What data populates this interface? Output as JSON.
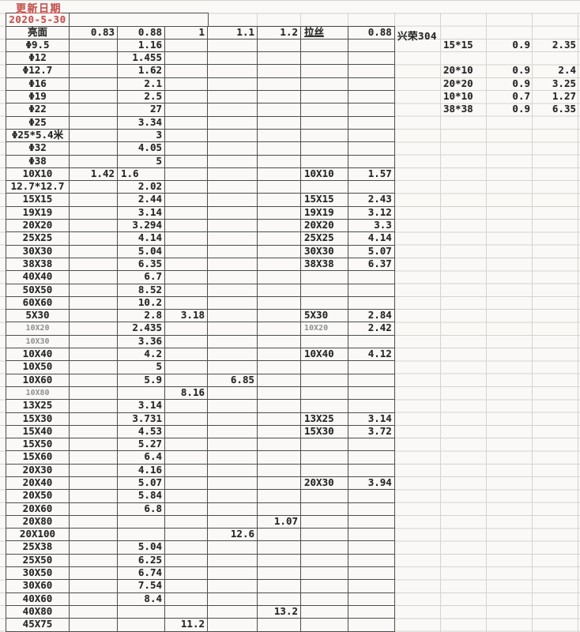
{
  "sheet": {
    "update_label": "更新日期",
    "update_date": "2020-5-30",
    "colors": {
      "accent_red": "#c4524e",
      "table_border": "#4d4d4d",
      "gridline": "#d6d3ce",
      "text": "#262626",
      "muted_label": "#8f8f8f",
      "background": "#faf9f7"
    }
  },
  "main_table": {
    "header": [
      "亮面",
      "0.83",
      "0.88",
      "1",
      "1.1",
      "1.2",
      "拉丝",
      "0.88"
    ],
    "rows": [
      {
        "c": [
          "Φ9.5",
          "",
          "1.16",
          "",
          "",
          "",
          "",
          ""
        ]
      },
      {
        "c": [
          "Φ12",
          "",
          "1.455",
          "",
          "",
          "",
          "",
          ""
        ]
      },
      {
        "c": [
          "Φ12.7",
          "",
          "1.62",
          "",
          "",
          "",
          "",
          ""
        ]
      },
      {
        "c": [
          "Φ16",
          "",
          "2.1",
          "",
          "",
          "",
          "",
          ""
        ]
      },
      {
        "c": [
          "Φ19",
          "",
          "2.5",
          "",
          "",
          "",
          "",
          ""
        ]
      },
      {
        "c": [
          "Φ22",
          "",
          "27",
          "",
          "",
          "",
          "",
          ""
        ]
      },
      {
        "c": [
          "Φ25",
          "",
          "3.34",
          "",
          "",
          "",
          "",
          ""
        ]
      },
      {
        "c": [
          "Φ25*5.4米",
          "",
          "3",
          "",
          "",
          "",
          "",
          ""
        ]
      },
      {
        "c": [
          "Φ32",
          "",
          "4.05",
          "",
          "",
          "",
          "",
          ""
        ]
      },
      {
        "c": [
          "Φ38",
          "",
          "5",
          "",
          "",
          "",
          "",
          ""
        ]
      },
      {
        "c": [
          "10X10",
          "1.42",
          "1.6",
          "",
          "",
          "",
          "10X10",
          "1.57"
        ],
        "cl": true
      },
      {
        "c": [
          "12.7*12.7",
          "",
          "2.02",
          "",
          "",
          "",
          "",
          ""
        ]
      },
      {
        "c": [
          "15X15",
          "",
          "2.44",
          "",
          "",
          "",
          "15X15",
          "2.43"
        ]
      },
      {
        "c": [
          "19X19",
          "",
          "3.14",
          "",
          "",
          "",
          "19X19",
          "3.12"
        ]
      },
      {
        "c": [
          "20X20",
          "",
          "3.294",
          "",
          "",
          "",
          "20X20",
          "3.3"
        ]
      },
      {
        "c": [
          "25X25",
          "",
          "4.14",
          "",
          "",
          "",
          "25X25",
          "4.14"
        ]
      },
      {
        "c": [
          "30X30",
          "",
          "5.04",
          "",
          "",
          "",
          "30X30",
          "5.07"
        ]
      },
      {
        "c": [
          "38X38",
          "",
          "6.35",
          "",
          "",
          "",
          "38X38",
          "6.37"
        ]
      },
      {
        "c": [
          "40X40",
          "",
          "6.7",
          "",
          "",
          "",
          "",
          ""
        ]
      },
      {
        "c": [
          "50X50",
          "",
          "8.52",
          "",
          "",
          "",
          "",
          ""
        ]
      },
      {
        "c": [
          "60X60",
          "",
          "10.2",
          "",
          "",
          "",
          "",
          ""
        ]
      },
      {
        "c": [
          "5X30",
          "",
          "2.8",
          "3.18",
          "",
          "",
          "5X30",
          "2.84"
        ]
      },
      {
        "c": [
          "10X20",
          "",
          "2.435",
          "",
          "",
          "",
          "10X20",
          "2.42"
        ],
        "sa": true,
        "sg": true
      },
      {
        "c": [
          "10X30",
          "",
          "3.36",
          "",
          "",
          "",
          "",
          ""
        ],
        "sa": true
      },
      {
        "c": [
          "10X40",
          "",
          "4.2",
          "",
          "",
          "",
          "10X40",
          "4.12"
        ]
      },
      {
        "c": [
          "10X50",
          "",
          "5",
          "",
          "",
          "",
          "",
          ""
        ]
      },
      {
        "c": [
          "10X60",
          "",
          "5.9",
          "",
          "6.85",
          "",
          "",
          ""
        ]
      },
      {
        "c": [
          "10X80",
          "",
          "",
          "8.16",
          "",
          "",
          "",
          ""
        ],
        "sa": true
      },
      {
        "c": [
          "13X25",
          "",
          "3.14",
          "",
          "",
          "",
          "",
          ""
        ]
      },
      {
        "c": [
          "15X30",
          "",
          "3.731",
          "",
          "",
          "",
          "13X25",
          "3.14"
        ]
      },
      {
        "c": [
          "15X40",
          "",
          "4.53",
          "",
          "",
          "",
          "15X30",
          "3.72"
        ]
      },
      {
        "c": [
          "15X50",
          "",
          "5.27",
          "",
          "",
          "",
          "",
          ""
        ]
      },
      {
        "c": [
          "15X60",
          "",
          "6.4",
          "",
          "",
          "",
          "",
          ""
        ]
      },
      {
        "c": [
          "20X30",
          "",
          "4.16",
          "",
          "",
          "",
          "",
          ""
        ]
      },
      {
        "c": [
          "20X40",
          "",
          "5.07",
          "",
          "",
          "",
          "20X30",
          "3.94"
        ]
      },
      {
        "c": [
          "20X50",
          "",
          "5.84",
          "",
          "",
          "",
          "",
          ""
        ]
      },
      {
        "c": [
          "20X60",
          "",
          "6.8",
          "",
          "",
          "",
          "",
          ""
        ]
      },
      {
        "c": [
          "20X80",
          "",
          "",
          "",
          "",
          "1.07",
          "",
          ""
        ]
      },
      {
        "c": [
          "20X100",
          "",
          "",
          "",
          "12.6",
          "",
          "",
          ""
        ]
      },
      {
        "c": [
          "25X38",
          "",
          "5.04",
          "",
          "",
          "",
          "",
          ""
        ]
      },
      {
        "c": [
          "25X50",
          "",
          "6.25",
          "",
          "",
          "",
          "",
          ""
        ]
      },
      {
        "c": [
          "30X50",
          "",
          "6.74",
          "",
          "",
          "",
          "",
          ""
        ]
      },
      {
        "c": [
          "30X60",
          "",
          "7.54",
          "",
          "",
          "",
          "",
          ""
        ]
      },
      {
        "c": [
          "40X60",
          "",
          "8.4",
          "",
          "",
          "",
          "",
          ""
        ]
      },
      {
        "c": [
          "40X80",
          "",
          "",
          "",
          "",
          "13.2",
          "",
          ""
        ]
      },
      {
        "c": [
          "45X75",
          "",
          "",
          "11.2",
          "",
          "",
          "",
          ""
        ]
      }
    ]
  },
  "side_table": {
    "title": "兴荣304",
    "rows": [
      {
        "size": "15*15",
        "thickness": "0.9",
        "price": "2.35"
      },
      {
        "size": "",
        "thickness": "",
        "price": ""
      },
      {
        "size": "20*10",
        "thickness": "0.9",
        "price": "2.4"
      },
      {
        "size": "20*20",
        "thickness": "0.9",
        "price": "3.25"
      },
      {
        "size": "10*10",
        "thickness": "0.7",
        "price": "1.27"
      },
      {
        "size": "38*38",
        "thickness": "0.9",
        "price": "6.35"
      }
    ]
  }
}
